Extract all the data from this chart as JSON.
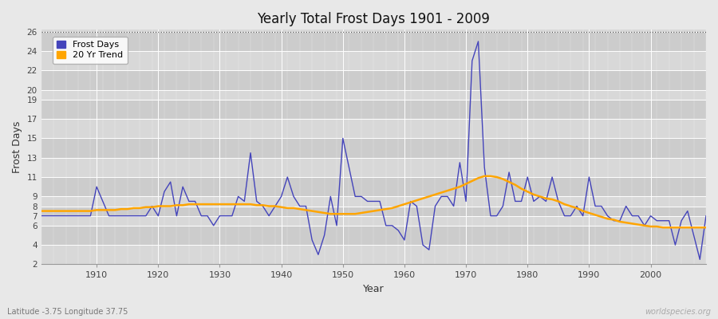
{
  "title": "Yearly Total Frost Days 1901 - 2009",
  "xlabel": "Year",
  "ylabel": "Frost Days",
  "footnote_left": "Latitude -3.75 Longitude 37.75",
  "footnote_right": "worldspecies.org",
  "legend_entries": [
    "Frost Days",
    "20 Yr Trend"
  ],
  "line_color": "#4444bb",
  "trend_color": "#ffa500",
  "fig_bg": "#e8e8e8",
  "plot_bg": "#d8d8d8",
  "grid_color": "#ffffff",
  "band_light": "#dcdcdc",
  "band_dark": "#cccccc",
  "ylim_min": 2,
  "ylim_max": 26,
  "yticks": [
    2,
    4,
    6,
    7,
    8,
    9,
    11,
    13,
    15,
    17,
    19,
    20,
    22,
    24,
    26
  ],
  "xlim_min": 1901,
  "xlim_max": 2009,
  "xticks": [
    1910,
    1920,
    1930,
    1940,
    1950,
    1960,
    1970,
    1980,
    1990,
    2000
  ],
  "years": [
    1901,
    1902,
    1903,
    1904,
    1905,
    1906,
    1907,
    1908,
    1909,
    1910,
    1911,
    1912,
    1913,
    1914,
    1915,
    1916,
    1917,
    1918,
    1919,
    1920,
    1921,
    1922,
    1923,
    1924,
    1925,
    1926,
    1927,
    1928,
    1929,
    1930,
    1931,
    1932,
    1933,
    1934,
    1935,
    1936,
    1937,
    1938,
    1939,
    1940,
    1941,
    1942,
    1943,
    1944,
    1945,
    1946,
    1947,
    1948,
    1949,
    1950,
    1951,
    1952,
    1953,
    1954,
    1955,
    1956,
    1957,
    1958,
    1959,
    1960,
    1961,
    1962,
    1963,
    1964,
    1965,
    1966,
    1967,
    1968,
    1969,
    1970,
    1971,
    1972,
    1973,
    1974,
    1975,
    1976,
    1977,
    1978,
    1979,
    1980,
    1981,
    1982,
    1983,
    1984,
    1985,
    1986,
    1987,
    1988,
    1989,
    1990,
    1991,
    1992,
    1993,
    1994,
    1995,
    1996,
    1997,
    1998,
    1999,
    2000,
    2001,
    2002,
    2003,
    2004,
    2005,
    2006,
    2007,
    2008,
    2009
  ],
  "frost_days": [
    7.0,
    7.0,
    7.0,
    7.0,
    7.0,
    7.0,
    7.0,
    7.0,
    7.0,
    10.0,
    8.5,
    7.0,
    7.0,
    7.0,
    7.0,
    7.0,
    7.0,
    7.0,
    8.0,
    7.0,
    9.5,
    10.5,
    7.0,
    10.0,
    8.5,
    8.5,
    7.0,
    7.0,
    6.0,
    7.0,
    7.0,
    7.0,
    9.0,
    8.5,
    13.5,
    8.5,
    8.0,
    7.0,
    8.0,
    9.0,
    11.0,
    9.0,
    8.0,
    8.0,
    4.5,
    3.0,
    5.0,
    9.0,
    6.0,
    15.0,
    12.0,
    9.0,
    9.0,
    8.5,
    8.5,
    8.5,
    6.0,
    6.0,
    5.5,
    4.5,
    8.5,
    8.0,
    4.0,
    3.5,
    8.0,
    9.0,
    9.0,
    8.0,
    12.5,
    8.5,
    23.0,
    25.0,
    12.0,
    7.0,
    7.0,
    8.0,
    11.5,
    8.5,
    8.5,
    11.0,
    8.5,
    9.0,
    8.5,
    11.0,
    8.5,
    7.0,
    7.0,
    8.0,
    7.0,
    11.0,
    8.0,
    8.0,
    7.0,
    6.5,
    6.5,
    8.0,
    7.0,
    7.0,
    6.0,
    7.0,
    6.5,
    6.5,
    6.5,
    4.0,
    6.5,
    7.5,
    5.0,
    2.5,
    7.0
  ],
  "trend": [
    7.5,
    7.5,
    7.5,
    7.5,
    7.5,
    7.5,
    7.5,
    7.5,
    7.5,
    7.6,
    7.6,
    7.6,
    7.6,
    7.7,
    7.7,
    7.8,
    7.8,
    7.9,
    7.9,
    8.0,
    8.0,
    8.0,
    8.1,
    8.1,
    8.2,
    8.2,
    8.2,
    8.2,
    8.2,
    8.2,
    8.2,
    8.2,
    8.2,
    8.2,
    8.2,
    8.1,
    8.1,
    8.0,
    8.0,
    7.9,
    7.8,
    7.8,
    7.7,
    7.6,
    7.5,
    7.4,
    7.3,
    7.2,
    7.2,
    7.2,
    7.2,
    7.2,
    7.3,
    7.4,
    7.5,
    7.6,
    7.7,
    7.8,
    8.0,
    8.2,
    8.4,
    8.6,
    8.8,
    9.0,
    9.2,
    9.4,
    9.6,
    9.8,
    10.0,
    10.3,
    10.6,
    10.9,
    11.1,
    11.1,
    11.0,
    10.8,
    10.5,
    10.2,
    9.8,
    9.5,
    9.2,
    9.0,
    8.8,
    8.7,
    8.5,
    8.2,
    8.0,
    7.8,
    7.5,
    7.3,
    7.1,
    6.9,
    6.7,
    6.6,
    6.4,
    6.3,
    6.2,
    6.1,
    6.0,
    5.9,
    5.9,
    5.8,
    5.8,
    5.8,
    5.8,
    5.8,
    5.8,
    5.8,
    5.8
  ]
}
